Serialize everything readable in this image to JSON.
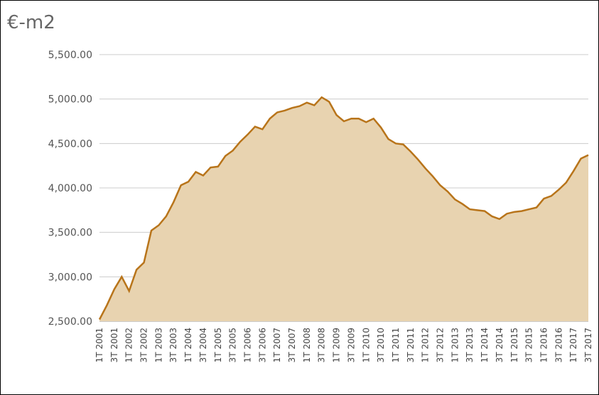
{
  "chart_data": {
    "type": "area",
    "title": "€-m2",
    "categories": [
      "1T 2001",
      null,
      "3T 2001",
      null,
      "1T 2002",
      null,
      "3T 2002",
      null,
      "1T 2003",
      null,
      "3T 2003",
      null,
      "1T 2004",
      null,
      "3T 2004",
      null,
      "1T 2005",
      null,
      "3T 2005",
      null,
      "1T 2006",
      null,
      "3T 2006",
      null,
      "1T 2007",
      null,
      "3T 2007",
      null,
      "1T 2008",
      null,
      "3T 2008",
      null,
      "1T 2009",
      null,
      "3T 2009",
      null,
      "1T 2010",
      null,
      "3T 2010",
      null,
      "1T 2011",
      null,
      "3T 2011",
      null,
      "1T 2012",
      null,
      "3T 2012",
      null,
      "1T 2013",
      null,
      "3T 2013",
      null,
      "1T 2014",
      null,
      "3T 2014",
      null,
      "1T 2015",
      null,
      "3T 2015",
      null,
      "1T 2016",
      null,
      "3T 2016",
      null,
      "1T 2017",
      null,
      "3T 2017"
    ],
    "values": [
      2520,
      2680,
      2860,
      3000,
      2840,
      3080,
      3160,
      3520,
      3580,
      3680,
      3840,
      4030,
      4070,
      4180,
      4140,
      4230,
      4240,
      4360,
      4420,
      4520,
      4600,
      4690,
      4660,
      4780,
      4850,
      4870,
      4900,
      4920,
      4960,
      4930,
      5020,
      4970,
      4820,
      4750,
      4780,
      4780,
      4740,
      4780,
      4680,
      4550,
      4500,
      4490,
      4410,
      4320,
      4220,
      4130,
      4030,
      3960,
      3870,
      3820,
      3760,
      3750,
      3740,
      3680,
      3650,
      3710,
      3730,
      3740,
      3760,
      3780,
      3880,
      3910,
      3980,
      4060,
      4190,
      4330,
      4370
    ],
    "color": "#b8741a",
    "fill_color": "#e8d3b0",
    "ylim": [
      2500,
      5500
    ],
    "yticks": [
      {
        "value": 2500,
        "label": "2,500.00"
      },
      {
        "value": 3000,
        "label": "3,000.00"
      },
      {
        "value": 3500,
        "label": "3,500.00"
      },
      {
        "value": 4000,
        "label": "4,000.00"
      },
      {
        "value": 4500,
        "label": "4,500.00"
      },
      {
        "value": 5000,
        "label": "5,000.00"
      },
      {
        "value": 5500,
        "label": "5,500.00"
      }
    ],
    "grid": true
  }
}
